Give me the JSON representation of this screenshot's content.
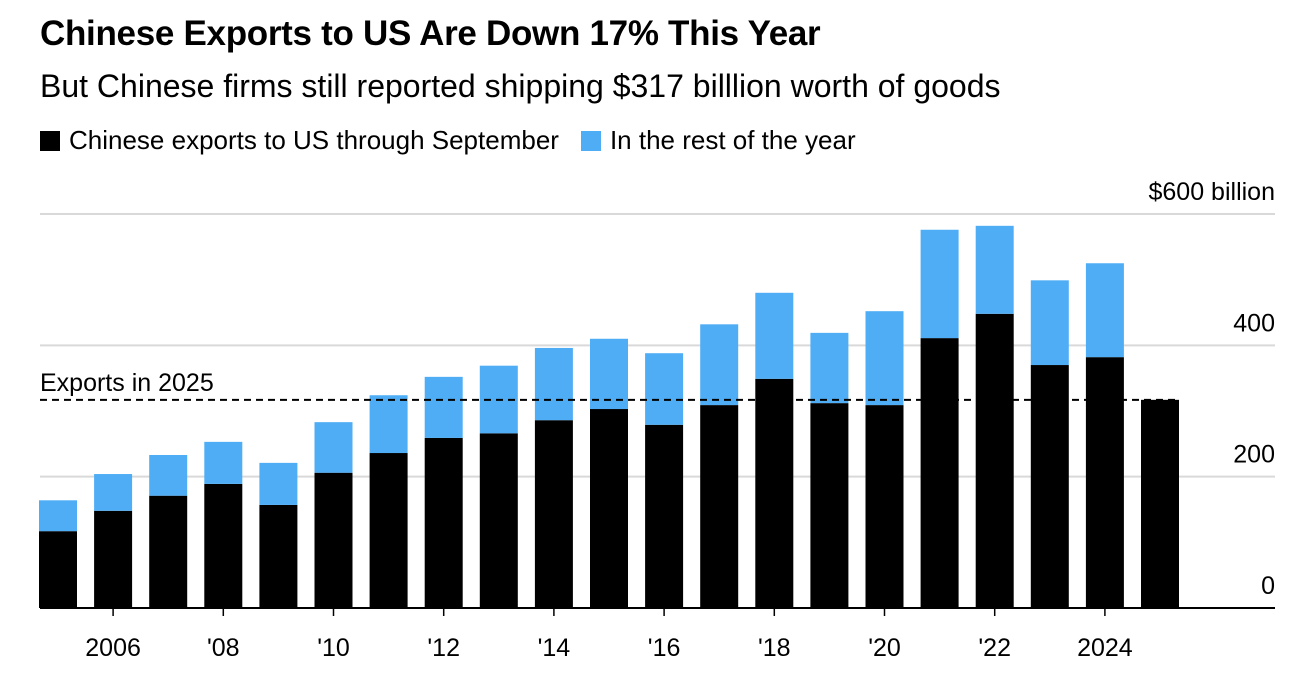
{
  "title": "Chinese Exports to US Are Down 17% This Year",
  "subtitle": "But Chinese firms still reported shipping $317 billlion worth of goods",
  "colors": {
    "through_september": "#000000",
    "rest_of_year": "#4eadf5",
    "grid": "#d9d9d9"
  },
  "chart_data": {
    "type": "bar",
    "stacked": true,
    "categories": [
      "2005",
      "2006",
      "2007",
      "2008",
      "2009",
      "2010",
      "2011",
      "2012",
      "2013",
      "2014",
      "2015",
      "2016",
      "2017",
      "2018",
      "2019",
      "2020",
      "2021",
      "2022",
      "2023",
      "2024",
      "2025"
    ],
    "series": [
      {
        "name": "Chinese exports to US through September",
        "values": [
          117,
          148,
          171,
          189,
          157,
          206,
          236,
          259,
          266,
          286,
          303,
          279,
          309,
          349,
          312,
          309,
          411,
          448,
          370,
          382,
          317
        ]
      },
      {
        "name": "In the rest of the year",
        "values": [
          47,
          56,
          62,
          64,
          64,
          77,
          88,
          93,
          103,
          110,
          107,
          109,
          123,
          131,
          107,
          143,
          165,
          134,
          129,
          143,
          0
        ]
      }
    ],
    "ylim": [
      0,
      600
    ],
    "y_ticks": [
      {
        "value": 0,
        "label": "0"
      },
      {
        "value": 200,
        "label": "200"
      },
      {
        "value": 400,
        "label": "400"
      },
      {
        "value": 600,
        "label": "$600 billion"
      }
    ],
    "x_ticks": [
      {
        "category": "2006",
        "label": "2006"
      },
      {
        "category": "2008",
        "label": "'08"
      },
      {
        "category": "2010",
        "label": "'10"
      },
      {
        "category": "2012",
        "label": "'12"
      },
      {
        "category": "2014",
        "label": "'14"
      },
      {
        "category": "2016",
        "label": "'16"
      },
      {
        "category": "2018",
        "label": "'18"
      },
      {
        "category": "2020",
        "label": "'20"
      },
      {
        "category": "2022",
        "label": "'22"
      },
      {
        "category": "2024",
        "label": "2024"
      }
    ],
    "reference_line": {
      "value": 317,
      "label": "Exports in 2025",
      "style": "dashed"
    },
    "grid": true,
    "legend": "top-left",
    "y_axis_side": "right"
  }
}
